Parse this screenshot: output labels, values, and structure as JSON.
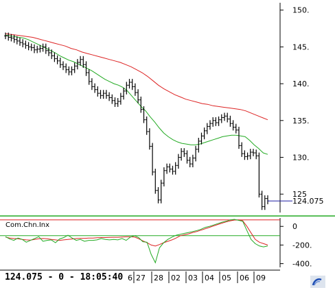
{
  "status_line": "124.075 - 0 - 18:05:40",
  "last_price_label": "124.075",
  "osc_label": "Com.Chn.Inx",
  "colors": {
    "price": "#000000",
    "ma_fast": "#22aa22",
    "ma_slow": "#dd2222",
    "last_line": "#1a1aa0",
    "separator": "#22aa22",
    "osc_upper": "#dd2222",
    "osc_lower": "#22aa22"
  },
  "icons": [
    "app-corner-icon"
  ],
  "chart_data": [
    {
      "type": "line",
      "title": "",
      "ylim": [
        122.5,
        151
      ],
      "y_ticks": [
        "150.",
        "145.",
        "140.",
        "135.",
        "130.",
        "125"
      ],
      "y_tick_values": [
        150,
        145,
        140,
        135,
        130,
        125
      ],
      "last_value": 124.075,
      "series": [
        {
          "key": "price",
          "style": "ohlc-bars",
          "values": [
            146.5,
            146.3,
            146.2,
            146.0,
            145.8,
            145.6,
            145.4,
            145.2,
            145.0,
            144.9,
            144.6,
            144.7,
            144.8,
            145.0,
            144.5,
            144.2,
            143.8,
            143.4,
            143.1,
            142.6,
            142.3,
            141.9,
            141.6,
            141.9,
            142.4,
            142.9,
            143.3,
            142.6,
            141.5,
            140.3,
            139.6,
            139.2,
            138.7,
            138.4,
            138.7,
            138.4,
            138.1,
            137.7,
            137.3,
            137.6,
            138.3,
            139.0,
            139.8,
            140.2,
            139.6,
            138.8,
            137.8,
            136.5,
            135.1,
            133.5,
            131.5,
            128.0,
            125.5,
            124.2,
            126.5,
            128.2,
            128.7,
            128.4,
            128.1,
            128.9,
            130.0,
            130.8,
            130.5,
            129.6,
            129.1,
            129.9,
            131.1,
            132.2,
            132.9,
            133.6,
            134.2,
            134.6,
            135.0,
            134.7,
            135.1,
            135.4,
            135.6,
            135.2,
            134.6,
            134.1,
            133.7,
            131.6,
            130.5,
            130.1,
            130.2,
            130.7,
            130.6,
            130.2,
            125.0,
            123.3,
            124.4,
            124.075
          ]
        },
        {
          "key": "ma_fast",
          "style": "line",
          "values": [
            146.6,
            146.5,
            146.4,
            146.3,
            146.2,
            146.0,
            145.7,
            145.4,
            145.1,
            144.8,
            144.5,
            144.2,
            143.8,
            143.5,
            143.2,
            143.0,
            142.7,
            142.4,
            142.1,
            141.8,
            141.4,
            141.0,
            140.6,
            140.3,
            140.0,
            139.8,
            139.5,
            139.0,
            138.3,
            137.6,
            136.9,
            136.3,
            135.5,
            134.8,
            134.0,
            133.3,
            132.8,
            132.4,
            132.1,
            131.9,
            131.8,
            131.7,
            131.7,
            131.8,
            132.0,
            132.2,
            132.4,
            132.6,
            132.8,
            132.9,
            133.0,
            133.0,
            132.9,
            132.8,
            132.3,
            131.7,
            131.2,
            130.6,
            130.4
          ]
        },
        {
          "key": "ma_slow",
          "style": "line",
          "values": [
            146.8,
            146.7,
            146.6,
            146.5,
            146.4,
            146.3,
            146.1,
            145.9,
            145.7,
            145.5,
            145.3,
            145.1,
            144.8,
            144.6,
            144.3,
            144.1,
            143.9,
            143.7,
            143.5,
            143.3,
            143.1,
            142.9,
            142.6,
            142.3,
            141.9,
            141.5,
            141.0,
            140.4,
            139.8,
            139.3,
            138.9,
            138.5,
            138.2,
            137.9,
            137.7,
            137.5,
            137.3,
            137.2,
            137.0,
            136.9,
            136.8,
            136.7,
            136.6,
            136.5,
            136.3,
            136.0,
            135.7,
            135.4,
            135.1
          ]
        }
      ]
    },
    {
      "type": "line",
      "title": "Com.Chn.Inx",
      "ylim": [
        -440,
        90
      ],
      "y_ticks": [
        "0",
        "-200.",
        "-400."
      ],
      "y_tick_values": [
        0,
        -200,
        -400
      ],
      "reference_lines": [
        70,
        -100
      ],
      "series": [
        {
          "key": "cci_a",
          "style": "line",
          "values": [
            -110,
            -135,
            -150,
            -125,
            -140,
            -170,
            -150,
            -130,
            -110,
            -160,
            -150,
            -145,
            -175,
            -135,
            -120,
            -95,
            -125,
            -150,
            -140,
            -160,
            -150,
            -150,
            -145,
            -130,
            -140,
            -145,
            -140,
            -145,
            -130,
            -150,
            -115,
            -100,
            -120,
            -165,
            -170,
            -300,
            -390,
            -230,
            -175,
            -140,
            -115,
            -95,
            -85,
            -75,
            -65,
            -55,
            -45,
            -30,
            -10,
            0,
            15,
            30,
            45,
            55,
            70,
            75,
            65,
            55,
            -45,
            -140,
            -185,
            -210,
            -220,
            -210
          ]
        },
        {
          "key": "cci_b",
          "style": "line",
          "values": [
            -115,
            -125,
            -130,
            -132,
            -140,
            -145,
            -148,
            -140,
            -132,
            -130,
            -132,
            -140,
            -145,
            -150,
            -145,
            -140,
            -135,
            -130,
            -128,
            -128,
            -126,
            -125,
            -122,
            -120,
            -120,
            -118,
            -117,
            -117,
            -115,
            -112,
            -112,
            -115,
            -132,
            -155,
            -175,
            -200,
            -210,
            -195,
            -175,
            -160,
            -145,
            -125,
            -100,
            -90,
            -80,
            -65,
            -55,
            -40,
            -25,
            -10,
            5,
            20,
            35,
            48,
            60,
            68,
            70,
            60,
            0,
            -70,
            -140,
            -170,
            -185,
            -200
          ]
        }
      ]
    }
  ],
  "x_axis": {
    "ticks": [
      "6",
      "27",
      "28",
      "02",
      "03",
      "04",
      "05",
      "06",
      "09"
    ]
  }
}
